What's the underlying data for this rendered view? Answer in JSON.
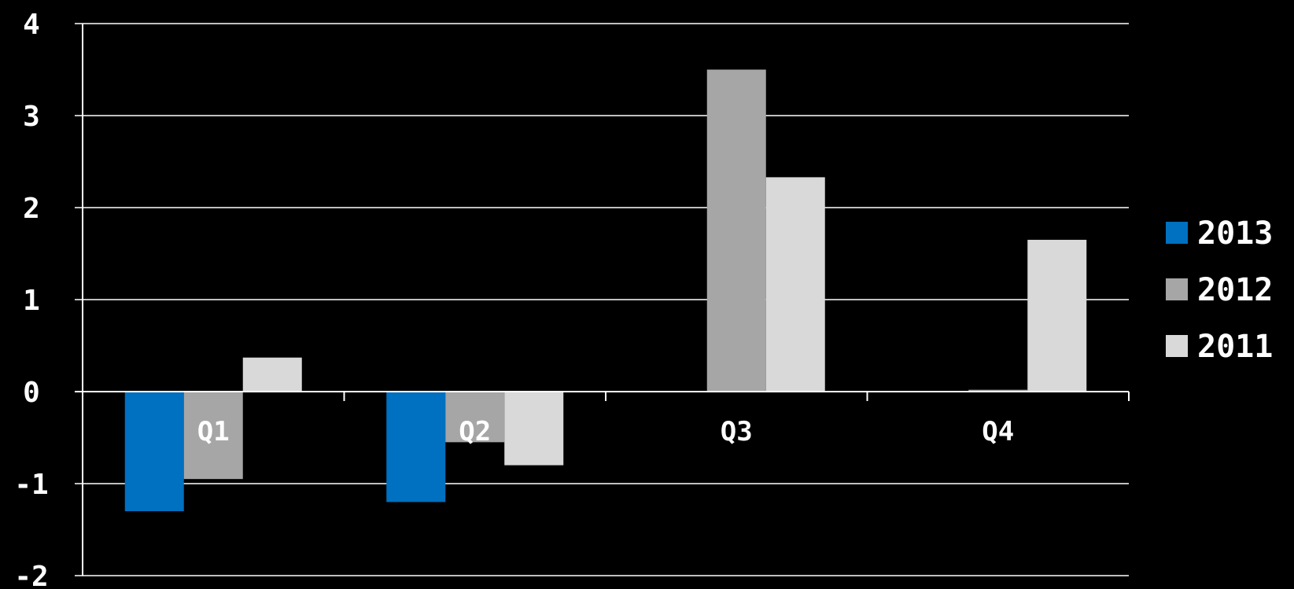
{
  "chart_data": {
    "type": "bar",
    "title": "",
    "xlabel": "",
    "ylabel": "",
    "categories": [
      "Q1",
      "Q2",
      "Q3",
      "Q4"
    ],
    "series": [
      {
        "name": "2013",
        "values": [
          -1.3,
          -1.2,
          null,
          null
        ],
        "color": "#0070c0"
      },
      {
        "name": "2012",
        "values": [
          -0.95,
          -0.55,
          3.5,
          0.02
        ],
        "color": "#a6a6a6"
      },
      {
        "name": "2011",
        "values": [
          0.37,
          -0.8,
          2.33,
          1.65
        ],
        "color": "#d9d9d9"
      }
    ],
    "ylim": [
      -2,
      4
    ],
    "yticks": [
      "-2",
      "-1",
      "0",
      "1",
      "2",
      "3",
      "4"
    ],
    "grid": true,
    "legend_position": "right"
  }
}
